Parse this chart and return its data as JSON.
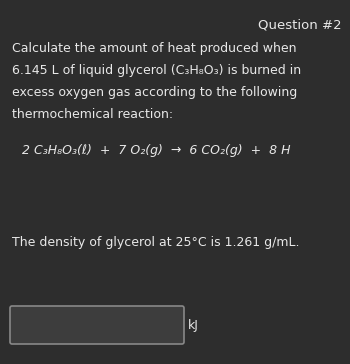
{
  "background_color": "#2d2d2d",
  "text_color": "#e8e8e8",
  "title": "Question #2",
  "line1": "Calculate the amount of heat produced when",
  "line2": "6.145 L of liquid glycerol (C₃H₈O₃) is burned in",
  "line3": "excess oxygen gas according to the following",
  "line4": "thermochemical reaction:",
  "equation": "2 C₃H₈O₃(ℓ)  +  7 O₂(g)  →  6 CO₂(g)  +  8 H",
  "density_line": "The density of glycerol at 25°C is 1.261 g/mL.",
  "unit": "kJ",
  "title_fontsize": 9.5,
  "body_fontsize": 9.0,
  "equation_fontsize": 9.0
}
